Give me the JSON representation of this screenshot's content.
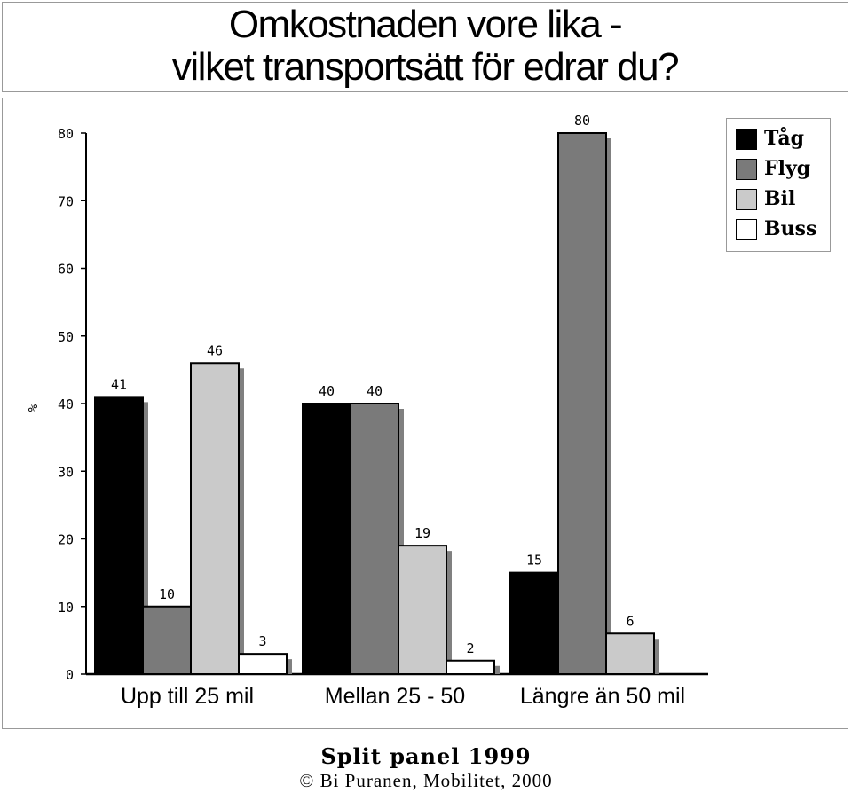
{
  "title": {
    "line1": "Omkostnaden vore lika -",
    "line2": "vilket transportsätt för edrar du?"
  },
  "footer": {
    "title": "Split panel 1999",
    "credit": "© Bi Puranen, Mobilitet, 2000"
  },
  "chart_data": {
    "type": "bar",
    "ylabel": "%",
    "xlabel": "",
    "ylim": [
      0,
      80
    ],
    "yticks": [
      "0",
      "10",
      "20",
      "30",
      "40",
      "50",
      "60",
      "70",
      "80"
    ],
    "grid": false,
    "legend_position": "top-right",
    "categories": [
      "Upp till 25 mil",
      "Mellan 25 - 50",
      "Längre än 50 mil"
    ],
    "series": [
      {
        "name": "Tåg",
        "color": "#000000",
        "values": [
          41,
          40,
          15
        ]
      },
      {
        "name": "Flyg",
        "color": "#7a7a7a",
        "values": [
          10,
          40,
          80
        ]
      },
      {
        "name": "Bil",
        "color": "#cacaca",
        "values": [
          46,
          19,
          6
        ]
      },
      {
        "name": "Buss",
        "color": "#ffffff",
        "values": [
          3,
          2,
          null
        ]
      }
    ]
  }
}
